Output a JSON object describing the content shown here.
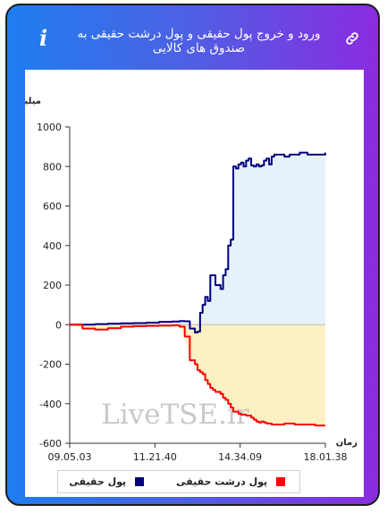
{
  "header": {
    "title": "ورود و خروج پول حقیقی و پول درشت حقیقی به صندوق های کالایی",
    "info_icon_glyph": "i",
    "link_icon": "link-icon",
    "info_icon": "info-icon"
  },
  "colors": {
    "header_gradient": [
      "#1f7df0",
      "#8a2ce0"
    ],
    "real_money": "#000080",
    "big_real_money": "#ff0000",
    "positive_fill": "#e6f1fa",
    "negative_fill": "#fdf1c4"
  },
  "watermark": "LiveTSE.ir",
  "legend": {
    "real_money_label": "پول حقیقی",
    "big_real_money_label": "پول درشت حقیقی"
  },
  "chart_data": {
    "type": "line",
    "ylabel": "میلیارد تومان",
    "xlabel": "زمان",
    "ylim": [
      -600,
      1000
    ],
    "yticks": [
      -600,
      -400,
      -200,
      0,
      200,
      400,
      600,
      800,
      1000
    ],
    "xtick_labels": [
      "09.05.03",
      "11.21.40",
      "14.34.09",
      "18.01.38"
    ],
    "x_range": [
      0,
      100
    ],
    "grid": false,
    "legend_position": "bottom",
    "series": [
      {
        "name": "پول حقیقی",
        "color": "#000080",
        "fill": "above-zero",
        "x": [
          0,
          5,
          10,
          15,
          20,
          25,
          30,
          35,
          40,
          43,
          45,
          47,
          49,
          50,
          51,
          52,
          53,
          54,
          55,
          56,
          57,
          58,
          59,
          60,
          61,
          62,
          63,
          64,
          65,
          66,
          67,
          68,
          69,
          70,
          71,
          72,
          73,
          74,
          75,
          76,
          77,
          78,
          79,
          80,
          82,
          84,
          86,
          88,
          90,
          93,
          96,
          100
        ],
        "y": [
          0,
          0,
          3,
          5,
          7,
          8,
          10,
          14,
          16,
          18,
          17,
          -20,
          -40,
          -35,
          60,
          100,
          140,
          120,
          250,
          250,
          200,
          200,
          180,
          250,
          280,
          400,
          430,
          800,
          790,
          810,
          820,
          800,
          830,
          840,
          805,
          800,
          810,
          800,
          805,
          830,
          840,
          810,
          850,
          860,
          860,
          850,
          860,
          860,
          870,
          860,
          860,
          870
        ]
      },
      {
        "name": "پول درشت حقیقی",
        "color": "#ff0000",
        "fill": "below-zero",
        "x": [
          0,
          5,
          10,
          15,
          20,
          25,
          30,
          35,
          40,
          43,
          45,
          47,
          49,
          50,
          51,
          52,
          53,
          54,
          55,
          56,
          57,
          58,
          59,
          60,
          61,
          62,
          63,
          64,
          65,
          66,
          67,
          68,
          69,
          70,
          71,
          72,
          73,
          74,
          75,
          76,
          77,
          78,
          79,
          80,
          82,
          84,
          86,
          88,
          90,
          93,
          96,
          100
        ],
        "y": [
          0,
          -20,
          -25,
          -18,
          -10,
          -8,
          -6,
          -5,
          -4,
          -10,
          -60,
          -180,
          -200,
          -230,
          -240,
          -250,
          -280,
          -300,
          -320,
          -330,
          -340,
          -340,
          -350,
          -370,
          -380,
          -400,
          -420,
          -440,
          -440,
          -450,
          -455,
          -455,
          -460,
          -460,
          -470,
          -480,
          -490,
          -495,
          -490,
          -495,
          -500,
          -500,
          -505,
          -505,
          -505,
          -500,
          -500,
          -505,
          -505,
          -505,
          -510,
          -510
        ]
      }
    ]
  }
}
